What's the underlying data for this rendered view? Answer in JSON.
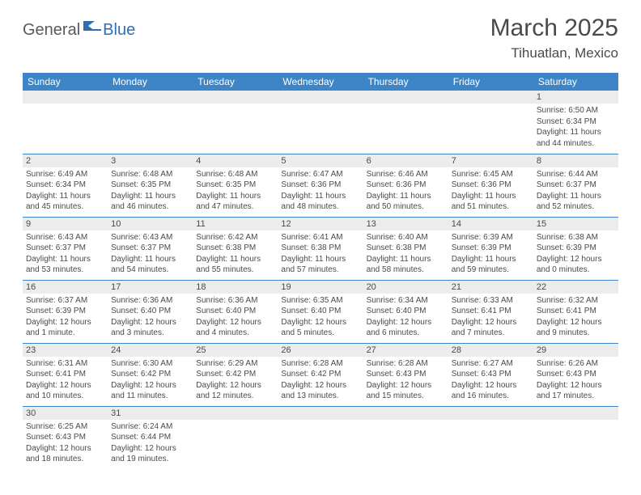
{
  "logo": {
    "part1": "General",
    "part2": "Blue"
  },
  "title": "March 2025",
  "location": "Tihuatlan, Mexico",
  "colors": {
    "header_bg": "#3d85c6",
    "header_text": "#ffffff",
    "daynum_bg": "#ececec",
    "border": "#3d85c6",
    "text": "#4a4a4a",
    "logo_blue": "#2f6fb0"
  },
  "weekdays": [
    "Sunday",
    "Monday",
    "Tuesday",
    "Wednesday",
    "Thursday",
    "Friday",
    "Saturday"
  ],
  "weeks": [
    [
      {
        "n": "",
        "sr": "",
        "ss": "",
        "dl": ""
      },
      {
        "n": "",
        "sr": "",
        "ss": "",
        "dl": ""
      },
      {
        "n": "",
        "sr": "",
        "ss": "",
        "dl": ""
      },
      {
        "n": "",
        "sr": "",
        "ss": "",
        "dl": ""
      },
      {
        "n": "",
        "sr": "",
        "ss": "",
        "dl": ""
      },
      {
        "n": "",
        "sr": "",
        "ss": "",
        "dl": ""
      },
      {
        "n": "1",
        "sr": "Sunrise: 6:50 AM",
        "ss": "Sunset: 6:34 PM",
        "dl": "Daylight: 11 hours and 44 minutes."
      }
    ],
    [
      {
        "n": "2",
        "sr": "Sunrise: 6:49 AM",
        "ss": "Sunset: 6:34 PM",
        "dl": "Daylight: 11 hours and 45 minutes."
      },
      {
        "n": "3",
        "sr": "Sunrise: 6:48 AM",
        "ss": "Sunset: 6:35 PM",
        "dl": "Daylight: 11 hours and 46 minutes."
      },
      {
        "n": "4",
        "sr": "Sunrise: 6:48 AM",
        "ss": "Sunset: 6:35 PM",
        "dl": "Daylight: 11 hours and 47 minutes."
      },
      {
        "n": "5",
        "sr": "Sunrise: 6:47 AM",
        "ss": "Sunset: 6:36 PM",
        "dl": "Daylight: 11 hours and 48 minutes."
      },
      {
        "n": "6",
        "sr": "Sunrise: 6:46 AM",
        "ss": "Sunset: 6:36 PM",
        "dl": "Daylight: 11 hours and 50 minutes."
      },
      {
        "n": "7",
        "sr": "Sunrise: 6:45 AM",
        "ss": "Sunset: 6:36 PM",
        "dl": "Daylight: 11 hours and 51 minutes."
      },
      {
        "n": "8",
        "sr": "Sunrise: 6:44 AM",
        "ss": "Sunset: 6:37 PM",
        "dl": "Daylight: 11 hours and 52 minutes."
      }
    ],
    [
      {
        "n": "9",
        "sr": "Sunrise: 6:43 AM",
        "ss": "Sunset: 6:37 PM",
        "dl": "Daylight: 11 hours and 53 minutes."
      },
      {
        "n": "10",
        "sr": "Sunrise: 6:43 AM",
        "ss": "Sunset: 6:37 PM",
        "dl": "Daylight: 11 hours and 54 minutes."
      },
      {
        "n": "11",
        "sr": "Sunrise: 6:42 AM",
        "ss": "Sunset: 6:38 PM",
        "dl": "Daylight: 11 hours and 55 minutes."
      },
      {
        "n": "12",
        "sr": "Sunrise: 6:41 AM",
        "ss": "Sunset: 6:38 PM",
        "dl": "Daylight: 11 hours and 57 minutes."
      },
      {
        "n": "13",
        "sr": "Sunrise: 6:40 AM",
        "ss": "Sunset: 6:38 PM",
        "dl": "Daylight: 11 hours and 58 minutes."
      },
      {
        "n": "14",
        "sr": "Sunrise: 6:39 AM",
        "ss": "Sunset: 6:39 PM",
        "dl": "Daylight: 11 hours and 59 minutes."
      },
      {
        "n": "15",
        "sr": "Sunrise: 6:38 AM",
        "ss": "Sunset: 6:39 PM",
        "dl": "Daylight: 12 hours and 0 minutes."
      }
    ],
    [
      {
        "n": "16",
        "sr": "Sunrise: 6:37 AM",
        "ss": "Sunset: 6:39 PM",
        "dl": "Daylight: 12 hours and 1 minute."
      },
      {
        "n": "17",
        "sr": "Sunrise: 6:36 AM",
        "ss": "Sunset: 6:40 PM",
        "dl": "Daylight: 12 hours and 3 minutes."
      },
      {
        "n": "18",
        "sr": "Sunrise: 6:36 AM",
        "ss": "Sunset: 6:40 PM",
        "dl": "Daylight: 12 hours and 4 minutes."
      },
      {
        "n": "19",
        "sr": "Sunrise: 6:35 AM",
        "ss": "Sunset: 6:40 PM",
        "dl": "Daylight: 12 hours and 5 minutes."
      },
      {
        "n": "20",
        "sr": "Sunrise: 6:34 AM",
        "ss": "Sunset: 6:40 PM",
        "dl": "Daylight: 12 hours and 6 minutes."
      },
      {
        "n": "21",
        "sr": "Sunrise: 6:33 AM",
        "ss": "Sunset: 6:41 PM",
        "dl": "Daylight: 12 hours and 7 minutes."
      },
      {
        "n": "22",
        "sr": "Sunrise: 6:32 AM",
        "ss": "Sunset: 6:41 PM",
        "dl": "Daylight: 12 hours and 9 minutes."
      }
    ],
    [
      {
        "n": "23",
        "sr": "Sunrise: 6:31 AM",
        "ss": "Sunset: 6:41 PM",
        "dl": "Daylight: 12 hours and 10 minutes."
      },
      {
        "n": "24",
        "sr": "Sunrise: 6:30 AM",
        "ss": "Sunset: 6:42 PM",
        "dl": "Daylight: 12 hours and 11 minutes."
      },
      {
        "n": "25",
        "sr": "Sunrise: 6:29 AM",
        "ss": "Sunset: 6:42 PM",
        "dl": "Daylight: 12 hours and 12 minutes."
      },
      {
        "n": "26",
        "sr": "Sunrise: 6:28 AM",
        "ss": "Sunset: 6:42 PM",
        "dl": "Daylight: 12 hours and 13 minutes."
      },
      {
        "n": "27",
        "sr": "Sunrise: 6:28 AM",
        "ss": "Sunset: 6:43 PM",
        "dl": "Daylight: 12 hours and 15 minutes."
      },
      {
        "n": "28",
        "sr": "Sunrise: 6:27 AM",
        "ss": "Sunset: 6:43 PM",
        "dl": "Daylight: 12 hours and 16 minutes."
      },
      {
        "n": "29",
        "sr": "Sunrise: 6:26 AM",
        "ss": "Sunset: 6:43 PM",
        "dl": "Daylight: 12 hours and 17 minutes."
      }
    ],
    [
      {
        "n": "30",
        "sr": "Sunrise: 6:25 AM",
        "ss": "Sunset: 6:43 PM",
        "dl": "Daylight: 12 hours and 18 minutes."
      },
      {
        "n": "31",
        "sr": "Sunrise: 6:24 AM",
        "ss": "Sunset: 6:44 PM",
        "dl": "Daylight: 12 hours and 19 minutes."
      },
      {
        "n": "",
        "sr": "",
        "ss": "",
        "dl": ""
      },
      {
        "n": "",
        "sr": "",
        "ss": "",
        "dl": ""
      },
      {
        "n": "",
        "sr": "",
        "ss": "",
        "dl": ""
      },
      {
        "n": "",
        "sr": "",
        "ss": "",
        "dl": ""
      },
      {
        "n": "",
        "sr": "",
        "ss": "",
        "dl": ""
      }
    ]
  ]
}
